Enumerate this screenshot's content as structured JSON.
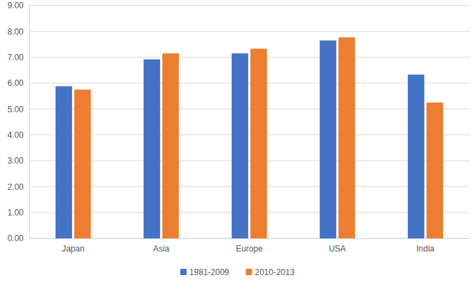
{
  "chart_data": {
    "type": "bar",
    "categories": [
      "Japan",
      "Asia",
      "Europe",
      "USA",
      "India"
    ],
    "series": [
      {
        "name": "1981-2009",
        "color": "#4472c4",
        "values": [
          5.88,
          6.92,
          7.15,
          7.65,
          6.33
        ]
      },
      {
        "name": "2010-2013",
        "color": "#ed7d31",
        "values": [
          5.75,
          7.15,
          7.33,
          7.77,
          5.25
        ]
      }
    ],
    "ylim": [
      0,
      9
    ],
    "yticks": [
      {
        "value": 0,
        "label": "0.00"
      },
      {
        "value": 1,
        "label": "1.00"
      },
      {
        "value": 2,
        "label": "2.00"
      },
      {
        "value": 3,
        "label": "3.00"
      },
      {
        "value": 4,
        "label": "4.00"
      },
      {
        "value": 5,
        "label": "5.00"
      },
      {
        "value": 6,
        "label": "6.00"
      },
      {
        "value": 7,
        "label": "7.00"
      },
      {
        "value": 8,
        "label": "8.00"
      },
      {
        "value": 9,
        "label": "9.00"
      }
    ],
    "grid": true,
    "legend": "bottom"
  }
}
